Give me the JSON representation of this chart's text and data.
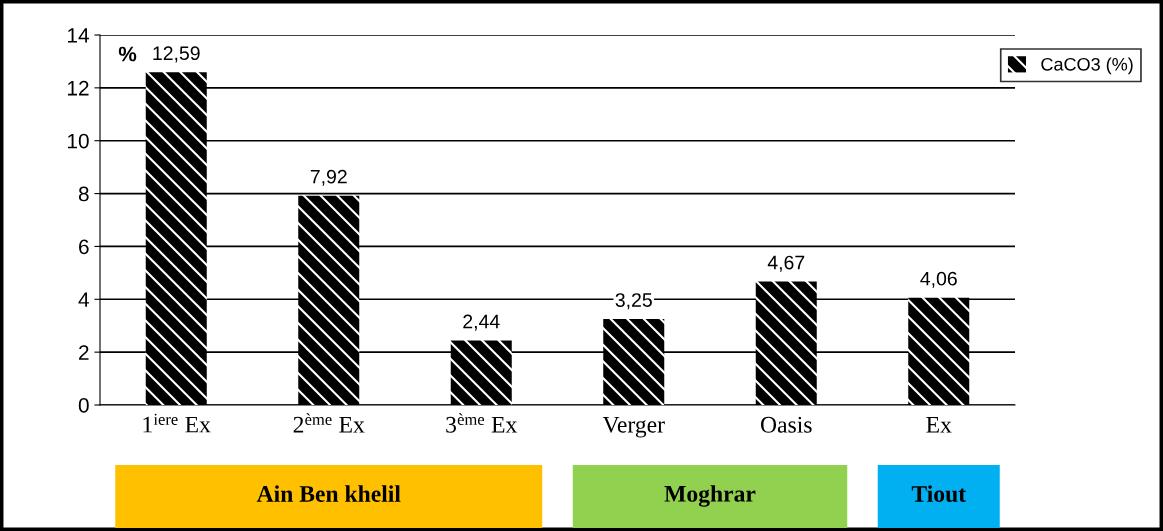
{
  "chart_data": {
    "type": "bar",
    "categories": [
      "1$^{iere}$ Ex",
      "2$^{ème}$ Ex",
      "3$^{ème}$ Ex",
      "Verger",
      "Oasis",
      "Ex"
    ],
    "series": [
      {
        "name": "CaCO3 (%)",
        "color": "#000000",
        "values": [
          12.59,
          7.92,
          2.44,
          3.25,
          4.67,
          4.06
        ],
        "value_labels": [
          "12,59",
          "7,92",
          "2,44",
          "3,25",
          "4,67",
          "4,06"
        ]
      }
    ],
    "ylabel": "%",
    "ylim": [
      0,
      14
    ],
    "yticks": [
      0,
      2,
      4,
      6,
      8,
      10,
      12,
      14
    ],
    "grid": "y",
    "legend": "top right",
    "annotations": [
      "Ain Ben khelil",
      "Moghrar",
      "Tiout"
    ]
  }
}
